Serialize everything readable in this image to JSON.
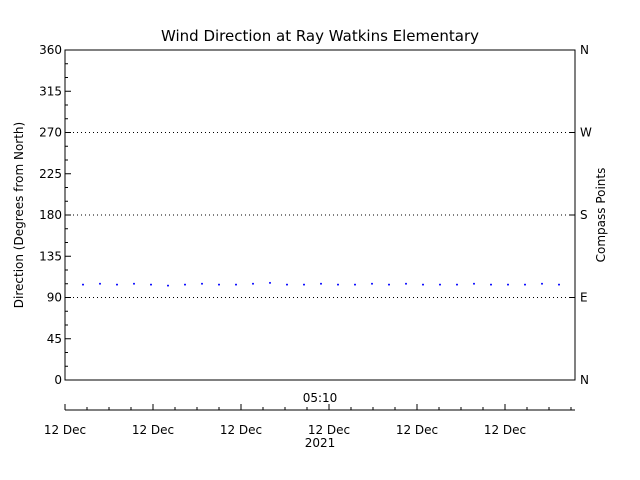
{
  "chart_data": {
    "type": "scatter",
    "title": "Wind Direction at Ray Watkins Elementary",
    "ylabel": "Direction (Degrees from North)",
    "ylabel_right": "Compass Points",
    "ylim": [
      0,
      360
    ],
    "yticks": [
      0,
      45,
      90,
      135,
      180,
      225,
      270,
      315,
      360
    ],
    "right_ticks": [
      {
        "value": 0,
        "label": "N"
      },
      {
        "value": 90,
        "label": "E"
      },
      {
        "value": 180,
        "label": "S"
      },
      {
        "value": 270,
        "label": "W"
      },
      {
        "value": 360,
        "label": "N"
      }
    ],
    "grid_values": [
      90,
      180,
      270
    ],
    "x_top_label": "05:10",
    "x_tick_labels": [
      "12 Dec",
      "12 Dec",
      "12 Dec",
      "12 Dec",
      "12 Dec",
      "12 Dec"
    ],
    "x_year_label": "2021",
    "series": [
      {
        "color": "#0000ff",
        "y": [
          104,
          105,
          104,
          105,
          104,
          103,
          104,
          105,
          104,
          104,
          105,
          106,
          104,
          104,
          105,
          104,
          104,
          105,
          104,
          105,
          104,
          104,
          104,
          105,
          104,
          104,
          104,
          105,
          104
        ]
      }
    ]
  }
}
